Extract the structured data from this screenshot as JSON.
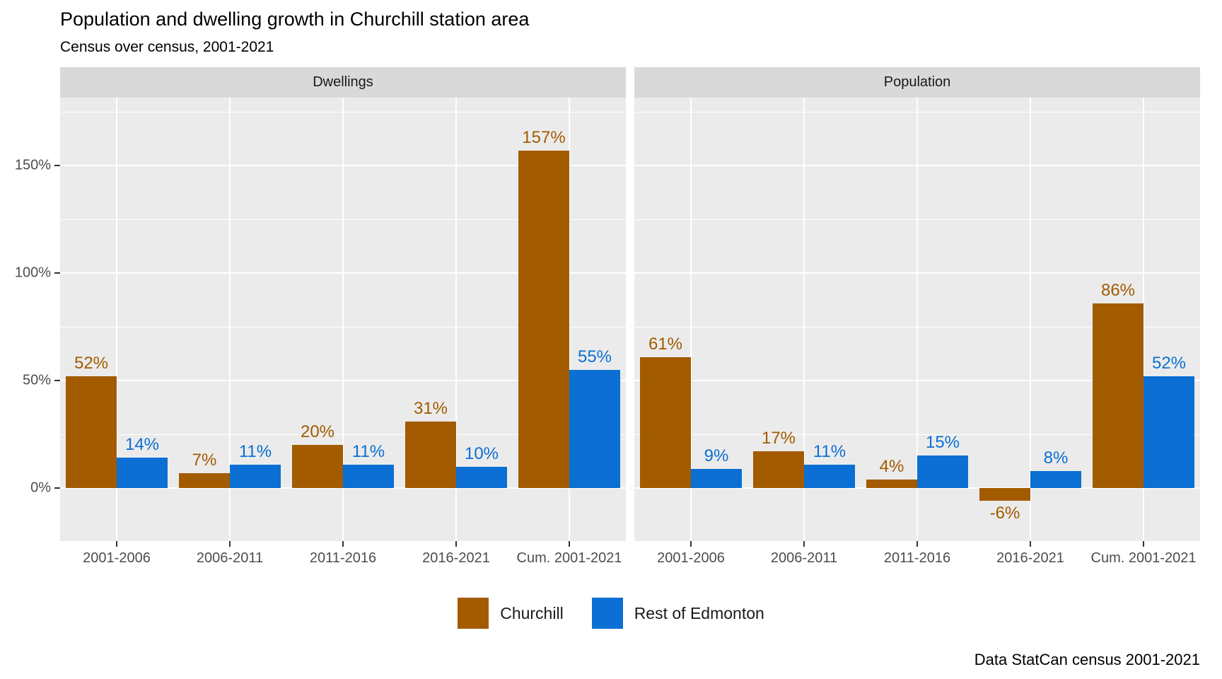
{
  "header": {
    "title": "Population and dwelling growth in Churchill station area",
    "subtitle": "Census over census, 2001-2021"
  },
  "caption": "Data StatCan census 2001-2021",
  "legend": {
    "items": [
      {
        "label": "Churchill",
        "color": "#A35B00"
      },
      {
        "label": "Rest of Edmonton",
        "color": "#0B6FD3"
      }
    ]
  },
  "chart_data": {
    "type": "bar",
    "title": "Population and dwelling growth in Churchill station area",
    "subtitle": "Census over census, 2001-2021",
    "caption": "Data StatCan census 2001-2021",
    "grid": true,
    "legend_position": "bottom",
    "xlabel": "",
    "ylabel": "",
    "ylim": [
      -25,
      181
    ],
    "categories": [
      "2001-2006",
      "2006-2011",
      "2011-2016",
      "2016-2021",
      "Cum. 2001-2021"
    ],
    "y_ticks": [
      {
        "value": 0,
        "label": "0%"
      },
      {
        "value": 50,
        "label": "50%"
      },
      {
        "value": 100,
        "label": "100%"
      },
      {
        "value": 150,
        "label": "150%"
      }
    ],
    "y_minor_ticks": [
      25,
      75,
      125,
      175
    ],
    "colors": {
      "Churchill": "#A35B00",
      "Rest of Edmonton": "#0B6FD3"
    },
    "facets": [
      {
        "label": "Dwellings",
        "series": [
          {
            "name": "Churchill",
            "values": [
              52,
              7,
              20,
              31,
              157
            ],
            "labels": [
              "52%",
              "7%",
              "20%",
              "31%",
              "157%"
            ]
          },
          {
            "name": "Rest of Edmonton",
            "values": [
              14,
              11,
              11,
              10,
              55
            ],
            "labels": [
              "14%",
              "11%",
              "11%",
              "10%",
              "55%"
            ]
          }
        ]
      },
      {
        "label": "Population",
        "series": [
          {
            "name": "Churchill",
            "values": [
              61,
              17,
              4,
              -6,
              86
            ],
            "labels": [
              "61%",
              "17%",
              "4%",
              "-6%",
              "86%"
            ]
          },
          {
            "name": "Rest of Edmonton",
            "values": [
              9,
              11,
              15,
              8,
              52
            ],
            "labels": [
              "9%",
              "11%",
              "15%",
              "8%",
              "52%"
            ]
          }
        ]
      }
    ]
  }
}
